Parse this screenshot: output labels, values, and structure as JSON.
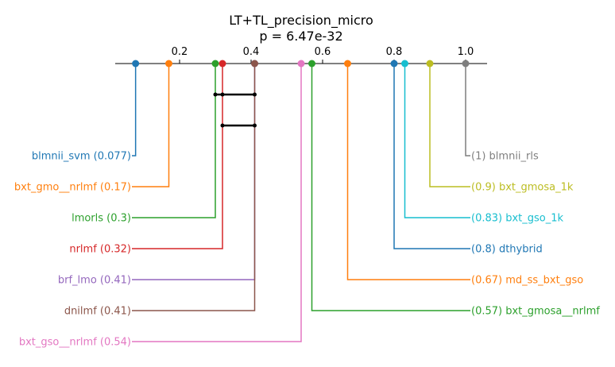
{
  "chart_data": {
    "type": "critical-difference-diagram",
    "title": "LT+TL_precision_micro",
    "subtitle": "p = 6.47e-32",
    "axis": {
      "range": [
        0.0,
        1.05
      ],
      "ticks": [
        0.2,
        0.4,
        0.6,
        0.8,
        1.0
      ],
      "tick_labels": [
        "0.2",
        "0.4",
        "0.6",
        "0.8",
        "1.0"
      ]
    },
    "methods_left": [
      {
        "name": "blmnii_svm",
        "value": 0.077,
        "label": "blmnii_svm (0.077)",
        "color": "#1f77b4"
      },
      {
        "name": "bxt_gmo__nrlmf",
        "value": 0.17,
        "label": "bxt_gmo__nrlmf (0.17)",
        "color": "#ff7f0e"
      },
      {
        "name": "lmorls",
        "value": 0.3,
        "label": "lmorls (0.3)",
        "color": "#2ca02c"
      },
      {
        "name": "nrlmf",
        "value": 0.32,
        "label": "nrlmf (0.32)",
        "color": "#d62728"
      },
      {
        "name": "brf_lmo",
        "value": 0.41,
        "label": "brf_lmo (0.41)",
        "color": "#9467bd"
      },
      {
        "name": "dnilmf",
        "value": 0.41,
        "label": "dnilmf (0.41)",
        "color": "#8c564b"
      },
      {
        "name": "bxt_gso__nrlmf",
        "value": 0.54,
        "label": "bxt_gso__nrlmf (0.54)",
        "color": "#e377c2"
      }
    ],
    "methods_right": [
      {
        "name": "blmnii_rls",
        "value": 1.0,
        "label": "(1) blmnii_rls",
        "color": "#7f7f7f"
      },
      {
        "name": "bxt_gmosa_1k",
        "value": 0.9,
        "label": "(0.9) bxt_gmosa_1k",
        "color": "#bcbd22"
      },
      {
        "name": "bxt_gso_1k",
        "value": 0.83,
        "label": "(0.83) bxt_gso_1k",
        "color": "#17becf"
      },
      {
        "name": "dthybrid",
        "value": 0.8,
        "label": "(0.8) dthybrid",
        "color": "#1f77b4"
      },
      {
        "name": "md_ss_bxt_gso",
        "value": 0.67,
        "label": "(0.67) md_ss_bxt_gso",
        "color": "#ff7f0e"
      },
      {
        "name": "bxt_gmosa__nrlmf",
        "value": 0.57,
        "label": "(0.57) bxt_gmosa__nrlmf",
        "color": "#2ca02c"
      }
    ],
    "cliques": [
      [
        0.3,
        0.32,
        0.41
      ],
      [
        0.32,
        0.41
      ]
    ]
  }
}
